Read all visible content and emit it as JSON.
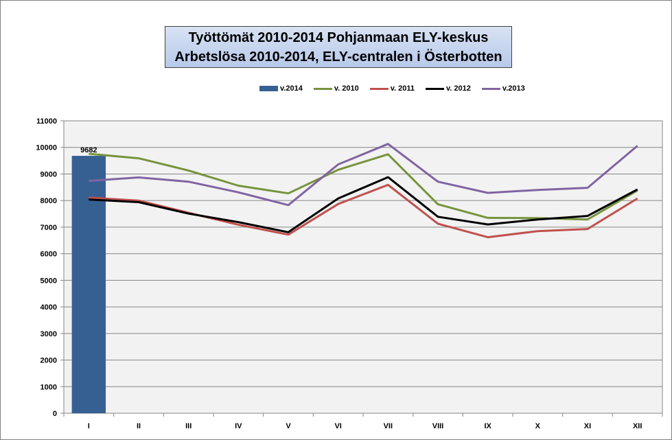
{
  "chart_data": {
    "type": "bar+line",
    "title_lines": [
      "Työttömät 2010-2014  Pohjanmaan ELY-keskus",
      "Arbetslösa 2010-2014, ELY-centralen i Österbotten"
    ],
    "categories": [
      "I",
      "II",
      "III",
      "IV",
      "V",
      "VI",
      "VII",
      "VIII",
      "IX",
      "X",
      "XI",
      "XII"
    ],
    "ylim": [
      0,
      11000
    ],
    "yticks": [
      0,
      1000,
      2000,
      3000,
      4000,
      5000,
      6000,
      7000,
      8000,
      9000,
      10000,
      11000
    ],
    "grid": true,
    "legend_position": "top",
    "bar_series": {
      "name": "v.2014",
      "color": "#376092",
      "values": [
        9682
      ],
      "data_labels": [
        "9682"
      ]
    },
    "line_series": [
      {
        "name": "v. 2010",
        "color": "#77933c",
        "values": [
          9760,
          9590,
          9130,
          8560,
          8270,
          9160,
          9740,
          7860,
          7350,
          7340,
          7290,
          8380
        ]
      },
      {
        "name": "v. 2011",
        "color": "#c0504d",
        "values": [
          8110,
          8000,
          7540,
          7090,
          6720,
          7870,
          8590,
          7130,
          6620,
          6850,
          6930,
          8080
        ]
      },
      {
        "name": "v. 2012",
        "color": "#000000",
        "values": [
          8040,
          7940,
          7510,
          7190,
          6810,
          8080,
          8880,
          7390,
          7100,
          7290,
          7420,
          8420
        ]
      },
      {
        "name": "v.2013",
        "color": "#8064a2",
        "values": [
          8740,
          8870,
          8710,
          8310,
          7830,
          9360,
          10130,
          8710,
          8290,
          8400,
          8480,
          10060
        ]
      }
    ]
  }
}
